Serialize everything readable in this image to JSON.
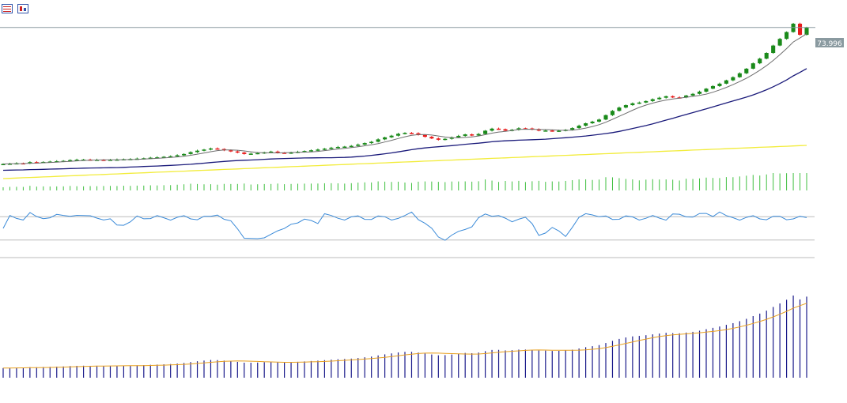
{
  "toolbar": {
    "icons": [
      "list-view-icon",
      "chart-properties-icon"
    ]
  },
  "price_label": "73.996",
  "colors": {
    "bull": "#1a8a1a",
    "bear": "#e81c1c",
    "ma_fast": "#6e6e6e",
    "ma_mid": "#1a1a7a",
    "ma_slow": "#f2ec3a",
    "volume": "#3fbf3f",
    "rsi": "#3a8ad8",
    "guide": "#bbbbbb",
    "hist": "#1a1a8a",
    "signal": "#e8a020",
    "price_line": "#8a9aa0",
    "price_tag_bg": "#8a9aa0"
  },
  "chart_data": [
    {
      "type": "candlestick",
      "panel": "price",
      "last_price": 73.996,
      "close_shape": [
        0.2,
        0.4,
        0.6,
        0.5,
        1.2,
        1.0,
        1.3,
        1.5,
        1.7,
        1.9,
        2.3,
        2.5,
        2.6,
        2.4,
        2.5,
        2.3,
        2.5,
        2.6,
        2.8,
        2.9,
        3.1,
        3.3,
        3.6,
        3.8,
        4.1,
        4.4,
        4.9,
        5.6,
        6.6,
        7.4,
        8.0,
        8.6,
        8.3,
        7.6,
        7.0,
        6.4,
        5.6,
        5.8,
        6.1,
        6.5,
        6.9,
        6.3,
        6.1,
        6.4,
        6.8,
        7.2,
        7.6,
        8.0,
        8.5,
        9.0,
        9.4,
        9.6,
        10.0,
        10.7,
        11.5,
        12.2,
        13.5,
        14.6,
        15.5,
        16.5,
        17.0,
        16.8,
        15.9,
        14.9,
        14.0,
        13.3,
        13.8,
        14.6,
        15.4,
        16.2,
        15.6,
        16.4,
        18.2,
        19.3,
        19.0,
        18.2,
        18.7,
        19.5,
        19.4,
        18.9,
        18.2,
        18.3,
        18.0,
        18.2,
        18.7,
        19.6,
        20.9,
        22.2,
        23.1,
        24.2,
        26.6,
        28.9,
        30.7,
        32.0,
        33.0,
        33.4,
        34.2,
        35.2,
        36.0,
        36.8,
        36.2,
        36.1,
        37.2,
        38.1,
        39.3,
        40.9,
        42.3,
        43.6,
        45.4,
        47.1,
        49.2,
        51.7,
        54.6,
        57.1,
        60.2,
        64.2,
        67.8,
        71.5,
        76.0,
        70.0,
        73.996
      ]
    },
    {
      "type": "line",
      "panel": "rsi",
      "levels": [
        70,
        30
      ]
    },
    {
      "type": "bar",
      "panel": "macd"
    }
  ]
}
